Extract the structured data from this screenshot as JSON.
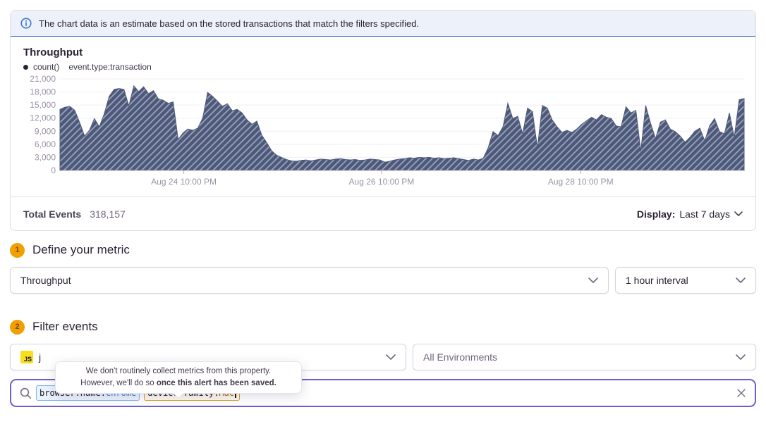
{
  "banner": {
    "text": "The chart data is an estimate based on the stored transactions that match the filters specified."
  },
  "chart": {
    "title": "Throughput",
    "legend": {
      "series": "count()",
      "query": "event.type:transaction"
    },
    "footer": {
      "total_label": "Total Events",
      "total_value": "318,157",
      "display_label": "Display:",
      "display_value": "Last 7 days"
    }
  },
  "chart_data": {
    "type": "area",
    "title": "Throughput",
    "ylabel": "count()",
    "ylim": [
      0,
      21000
    ],
    "y_ticks": [
      0,
      3000,
      6000,
      9000,
      12000,
      15000,
      18000,
      21000
    ],
    "x_ticks": [
      "Aug 24 10:00 PM",
      "Aug 26 10:00 PM",
      "Aug 28 10:00 PM"
    ],
    "x_tick_positions": [
      0.181,
      0.47,
      0.761
    ],
    "grid": true,
    "legend_position": "top-left",
    "pattern": "diagonal-hatch (estimated data)",
    "colors": {
      "area_base": "#4e5878",
      "area_stripe": "#97a3bd",
      "axis_text": "#9b91a8",
      "axis_line": "#b3a7c0",
      "grid_line": "#f1eef5"
    },
    "series": [
      {
        "name": "count() event.type:transaction",
        "values": [
          14000,
          14500,
          14700,
          13800,
          11000,
          7900,
          9200,
          11900,
          10000,
          13000,
          17000,
          18600,
          18800,
          18600,
          14800,
          19400,
          18100,
          19200,
          17600,
          18300,
          16400,
          16100,
          15400,
          15700,
          7100,
          8600,
          9500,
          9200,
          9700,
          12000,
          17900,
          17000,
          15900,
          14700,
          15300,
          13700,
          14000,
          13200,
          11600,
          10600,
          11300,
          8100,
          6400,
          4500,
          3500,
          3000,
          2500,
          2200,
          2100,
          2300,
          2400,
          2200,
          2400,
          2600,
          2500,
          2400,
          2600,
          2700,
          2500,
          2400,
          2500,
          2300,
          2400,
          2600,
          2500,
          2400,
          1900,
          2100,
          2400,
          2600,
          2700,
          2900,
          2800,
          3000,
          2900,
          3000,
          2800,
          2900,
          2700,
          2800,
          2900,
          2700,
          2500,
          2300,
          2600,
          2400,
          2800,
          5200,
          8900,
          8000,
          10000,
          15400,
          11900,
          12400,
          8400,
          14300,
          13500,
          5200,
          14900,
          14300,
          11600,
          10000,
          8700,
          9200,
          8700,
          9500,
          10600,
          11400,
          12200,
          11600,
          12800,
          12200,
          11900,
          10200,
          10000,
          14600,
          13200,
          13800,
          4400,
          14900,
          10800,
          7300,
          11100,
          11600,
          9500,
          8900,
          7900,
          6500,
          7600,
          9000,
          9700,
          6800,
          10300,
          11900,
          8900,
          8400,
          13200,
          7600,
          16200,
          16500
        ]
      }
    ]
  },
  "sections": {
    "metric": {
      "number": "1",
      "title": "Define your metric",
      "metric_select": "Throughput",
      "interval_select": "1 hour interval"
    },
    "filter": {
      "number": "2",
      "title": "Filter events",
      "project_platform_badge": "JS",
      "project_visible_text": "j",
      "environment_select": "All Environments"
    }
  },
  "tooltip": {
    "line1": "We don't routinely collect metrics from this property.",
    "line2_prefix": "However, we'll do so ",
    "line2_bold": "once this alert has been saved."
  },
  "search": {
    "tokens": [
      {
        "key": "browser.name:",
        "value": "Chrome",
        "style": "blue"
      },
      {
        "key": "device.family:",
        "value": "Mac",
        "style": "amber"
      }
    ]
  },
  "colors": {
    "accent_purple": "#6e5ec9",
    "banner_blue": "#2f62cc",
    "badge_amber": "#f0a000",
    "js_yellow": "#f7df1e",
    "token_blue": "#3b7ddd",
    "token_amber": "#9d6c0c"
  }
}
